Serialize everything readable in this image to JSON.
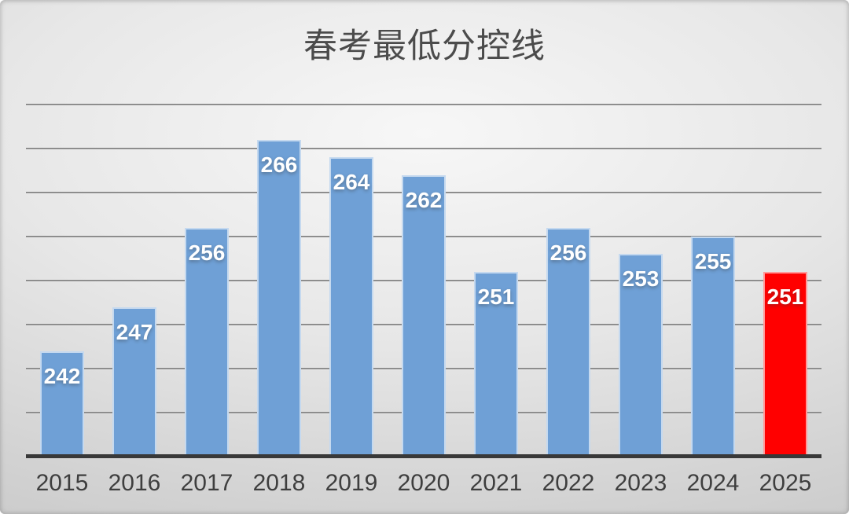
{
  "title": "春考最低分控线",
  "chart_data": {
    "type": "bar",
    "title": "春考最低分控线",
    "categories": [
      "2015",
      "2016",
      "2017",
      "2018",
      "2019",
      "2020",
      "2021",
      "2022",
      "2023",
      "2024",
      "2025"
    ],
    "values": [
      242,
      247,
      256,
      266,
      264,
      262,
      251,
      256,
      253,
      255,
      251
    ],
    "highlight_index": 10,
    "xlabel": "",
    "ylabel": "",
    "ylim": [
      230,
      270
    ],
    "gridline_step": 5,
    "grid": true,
    "legend_position": "none",
    "value_labels": "inside-top",
    "colors": {
      "bar_default": "#6FA0D6",
      "bar_highlight": "#FF0000",
      "value_label_text": "#FFFFFF",
      "gridline": "#8D8D8D",
      "axis_line": "#383838",
      "tick_label_text": "#3E3E3E",
      "title_text": "#4B4B4B"
    }
  }
}
